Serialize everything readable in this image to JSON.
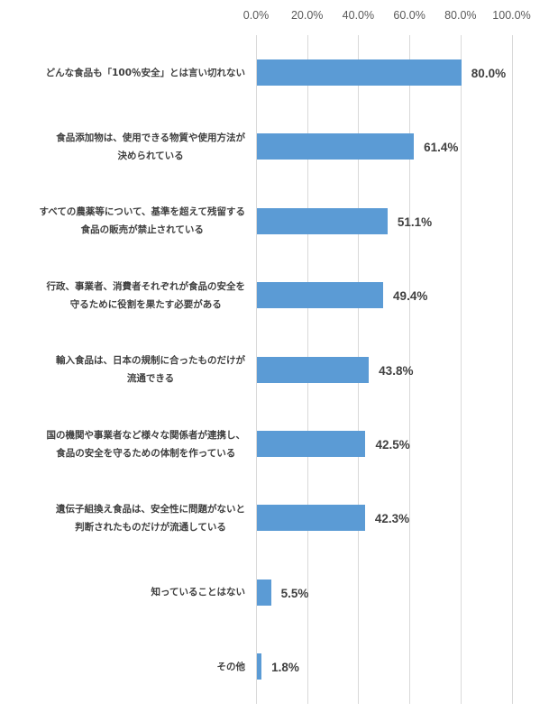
{
  "chart_data": {
    "type": "bar",
    "orientation": "horizontal",
    "title": "",
    "xlabel": "",
    "ylabel": "",
    "xlim": [
      0,
      100
    ],
    "x_axis_position": "top",
    "grid": true,
    "legend": null,
    "tick_labels": [
      "0.0%",
      "20.0%",
      "40.0%",
      "60.0%",
      "80.0%",
      "100.0%"
    ],
    "bar_color": "#5b9bd5",
    "categories": [
      [
        "どんな食品も「100％安全」とは言い切れない"
      ],
      [
        "食品添加物は、使用できる物質や使用方法が",
        "決められている"
      ],
      [
        "すべての農薬等について、基準を超えて残留する",
        "食品の販売が禁止されている"
      ],
      [
        "行政、事業者、消費者それぞれが食品の安全を",
        "守るために役割を果たす必要がある"
      ],
      [
        "輸入食品は、日本の規制に合ったものだけが",
        "流通できる"
      ],
      [
        "国の機関や事業者など様々な関係者が連携し、",
        "食品の安全を守るための体制を作っている"
      ],
      [
        "遺伝子組換え食品は、安全性に問題がないと",
        "判断されたものだけが流通している"
      ],
      [
        "知っていることはない"
      ],
      [
        "その他"
      ]
    ],
    "values": [
      80.0,
      61.4,
      51.1,
      49.4,
      43.8,
      42.5,
      42.3,
      5.5,
      1.8
    ],
    "value_labels": [
      "80.0%",
      "61.4%",
      "51.1%",
      "49.4%",
      "43.8%",
      "42.5%",
      "42.3%",
      "5.5%",
      "1.8%"
    ]
  }
}
